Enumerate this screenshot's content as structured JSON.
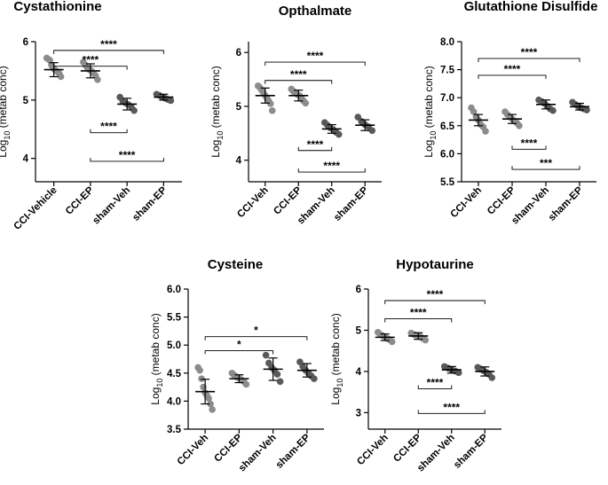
{
  "chart_data": [
    {
      "type": "scatter",
      "title": "Cystathionine",
      "ylabel": "Log",
      "ylabel_sub": "10",
      "ylabel_rest": " (metab conc)",
      "ylim": [
        3.6,
        6.0
      ],
      "yticks": [
        "4",
        "5",
        "6"
      ],
      "yticks_values": [
        4,
        5,
        6
      ],
      "categories": [
        "CCI-Vehicle",
        "CCI-EP",
        "sham-Veh",
        "sham-EP"
      ],
      "colors": [
        "#8c8c8c",
        "#8c8c8c",
        "#595959",
        "#595959"
      ],
      "means": [
        5.52,
        5.5,
        4.93,
        5.05
      ],
      "sds": [
        0.12,
        0.12,
        0.1,
        0.05
      ],
      "points": [
        [
          5.72,
          5.7,
          5.68,
          5.6,
          5.55,
          5.52,
          5.5,
          5.48,
          5.45,
          5.4
        ],
        [
          5.65,
          5.6,
          5.55,
          5.52,
          5.5,
          5.46,
          5.42,
          5.35
        ],
        [
          5.05,
          4.98,
          4.95,
          4.92,
          4.88,
          4.82
        ],
        [
          5.1,
          5.08,
          5.05,
          5.03,
          5.01,
          4.99
        ]
      ],
      "comparisons": [
        {
          "from": 0,
          "to": 3,
          "y": 5.85,
          "label": "****"
        },
        {
          "from": 0,
          "to": 2,
          "y": 5.58,
          "label": "****"
        },
        {
          "from": 1,
          "to": 2,
          "y": 4.44,
          "label": "****",
          "below": true
        },
        {
          "from": 1,
          "to": 3,
          "y": 3.95,
          "label": "****",
          "below": true
        }
      ]
    },
    {
      "type": "scatter",
      "title": "Opthalmate",
      "ylabel": "Log",
      "ylabel_sub": "10",
      "ylabel_rest": " (metab conc)",
      "ylim": [
        3.6,
        6.2
      ],
      "yticks": [
        "4",
        "5",
        "6"
      ],
      "yticks_values": [
        4,
        5,
        6
      ],
      "categories": [
        "CCI-Veh",
        "CCI-EP",
        "sham-Veh",
        "sham-EP"
      ],
      "colors": [
        "#8c8c8c",
        "#8c8c8c",
        "#595959",
        "#595959"
      ],
      "means": [
        5.2,
        5.2,
        4.58,
        4.65
      ],
      "sds": [
        0.14,
        0.1,
        0.08,
        0.1
      ],
      "points": [
        [
          5.38,
          5.35,
          5.3,
          5.25,
          5.2,
          5.15,
          5.1,
          5.05,
          4.92
        ],
        [
          5.32,
          5.28,
          5.25,
          5.22,
          5.2,
          5.15,
          5.1,
          5.06
        ],
        [
          4.7,
          4.65,
          4.6,
          4.57,
          4.52,
          4.48
        ],
        [
          4.8,
          4.72,
          4.66,
          4.62,
          4.55
        ]
      ],
      "comparisons": [
        {
          "from": 0,
          "to": 3,
          "y": 5.82,
          "label": "****"
        },
        {
          "from": 0,
          "to": 2,
          "y": 5.48,
          "label": "****"
        },
        {
          "from": 1,
          "to": 2,
          "y": 4.18,
          "label": "****",
          "below": true
        },
        {
          "from": 1,
          "to": 3,
          "y": 3.78,
          "label": "****",
          "below": true
        }
      ]
    },
    {
      "type": "scatter",
      "title": "Glutathione Disulfide",
      "ylabel": "Log",
      "ylabel_sub": "10",
      "ylabel_rest": " (metab conc)",
      "ylim": [
        5.5,
        8.0
      ],
      "yticks": [
        "5.5",
        "6.0",
        "6.5",
        "7.0",
        "7.5",
        "8.0"
      ],
      "yticks_values": [
        5.5,
        6.0,
        6.5,
        7.0,
        7.5,
        8.0
      ],
      "categories": [
        "CCI-Veh",
        "CCI-EP",
        "sham-Veh",
        "sham-EP"
      ],
      "colors": [
        "#8c8c8c",
        "#8c8c8c",
        "#595959",
        "#595959"
      ],
      "means": [
        6.6,
        6.62,
        6.88,
        6.84
      ],
      "sds": [
        0.1,
        0.08,
        0.08,
        0.06
      ],
      "points": [
        [
          6.82,
          6.75,
          6.66,
          6.6,
          6.52,
          6.48,
          6.4
        ],
        [
          6.75,
          6.7,
          6.66,
          6.62,
          6.58,
          6.55,
          6.5
        ],
        [
          6.96,
          6.93,
          6.9,
          6.85,
          6.8,
          6.77
        ],
        [
          6.92,
          6.88,
          6.85,
          6.82,
          6.8,
          6.78
        ]
      ],
      "comparisons": [
        {
          "from": 0,
          "to": 3,
          "y": 7.7,
          "label": "****"
        },
        {
          "from": 0,
          "to": 2,
          "y": 7.4,
          "label": "****"
        },
        {
          "from": 1,
          "to": 2,
          "y": 6.08,
          "label": "****",
          "below": true
        },
        {
          "from": 1,
          "to": 3,
          "y": 5.72,
          "label": "***",
          "below": true
        }
      ]
    },
    {
      "type": "scatter",
      "title": "Cysteine",
      "ylabel": "Log",
      "ylabel_sub": "10",
      "ylabel_rest": " (metab conc)",
      "ylim": [
        3.5,
        6.0
      ],
      "yticks": [
        "3.5",
        "4.0",
        "4.5",
        "5.0",
        "5.5",
        "6.0"
      ],
      "yticks_values": [
        3.5,
        4.0,
        4.5,
        5.0,
        5.5,
        6.0
      ],
      "categories": [
        "CCI-Veh",
        "CCI-EP",
        "sham-Veh",
        "sham-EP"
      ],
      "colors": [
        "#8c8c8c",
        "#8c8c8c",
        "#595959",
        "#595959"
      ],
      "means": [
        4.17,
        4.4,
        4.57,
        4.55
      ],
      "sds": [
        0.22,
        0.07,
        0.2,
        0.12
      ],
      "points": [
        [
          4.6,
          4.55,
          4.4,
          4.25,
          4.15,
          4.1,
          4.05,
          3.95,
          3.85
        ],
        [
          4.5,
          4.46,
          4.43,
          4.41,
          4.38,
          4.35,
          4.3
        ],
        [
          4.82,
          4.68,
          4.6,
          4.55,
          4.48,
          4.35
        ],
        [
          4.7,
          4.62,
          4.55,
          4.5,
          4.45,
          4.4
        ]
      ],
      "comparisons": [
        {
          "from": 0,
          "to": 3,
          "y": 5.15,
          "label": "*"
        },
        {
          "from": 0,
          "to": 2,
          "y": 4.9,
          "label": "*"
        }
      ]
    },
    {
      "type": "scatter",
      "title": "Hypotaurine",
      "ylabel": "Log",
      "ylabel_sub": "10",
      "ylabel_rest": " (metab conc)",
      "ylim": [
        2.6,
        6.0
      ],
      "yticks": [
        "3",
        "4",
        "5",
        "6"
      ],
      "yticks_values": [
        3,
        4,
        5,
        6
      ],
      "categories": [
        "CCI-Veh",
        "CCI-EP",
        "sham-Veh",
        "sham-EP"
      ],
      "colors": [
        "#8c8c8c",
        "#8c8c8c",
        "#595959",
        "#595959"
      ],
      "means": [
        4.83,
        4.86,
        4.04,
        4.0
      ],
      "sds": [
        0.08,
        0.08,
        0.08,
        0.11
      ],
      "points": [
        [
          4.95,
          4.9,
          4.87,
          4.83,
          4.8,
          4.77,
          4.72
        ],
        [
          4.93,
          4.9,
          4.88,
          4.86,
          4.84,
          4.8,
          4.76
        ],
        [
          4.12,
          4.08,
          4.04,
          4.01,
          3.97
        ],
        [
          4.1,
          4.06,
          4.02,
          3.98,
          3.93,
          3.85
        ]
      ],
      "comparisons": [
        {
          "from": 0,
          "to": 3,
          "y": 5.72,
          "label": "****"
        },
        {
          "from": 0,
          "to": 2,
          "y": 5.28,
          "label": "****"
        },
        {
          "from": 1,
          "to": 2,
          "y": 3.58,
          "label": "****",
          "below": true
        },
        {
          "from": 1,
          "to": 3,
          "y": 2.98,
          "label": "****",
          "below": true
        }
      ]
    }
  ]
}
